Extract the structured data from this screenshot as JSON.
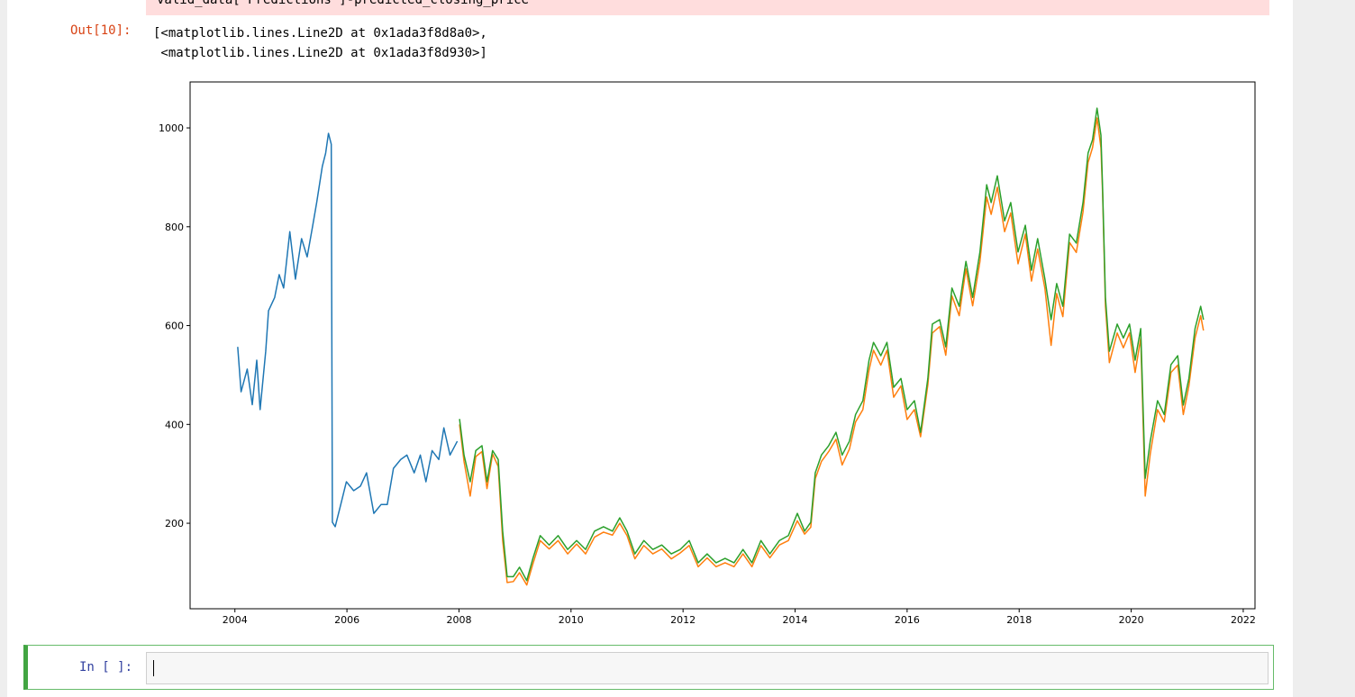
{
  "previous_cell": {
    "code": "valid_data['Predictions']-predicted_closing_price"
  },
  "output": {
    "prompt": "Out[10]:",
    "lines": [
      "[<matplotlib.lines.Line2D at 0x1ada3f8d8a0>,",
      " <matplotlib.lines.Line2D at 0x1ada3f8d930>]"
    ]
  },
  "chart_data": {
    "type": "line",
    "xlim": [
      2003.2,
      2022.21
    ],
    "xticks": [
      2004,
      2006,
      2008,
      2010,
      2012,
      2014,
      2016,
      2018,
      2020,
      2022
    ],
    "ylim": [
      27,
      1093
    ],
    "yticks": [
      200,
      400,
      600,
      800,
      1000
    ],
    "grid": false,
    "series": [
      {
        "color": "#1f77b4",
        "x": [
          2004.05,
          2004.11,
          2004.22,
          2004.31,
          2004.39,
          2004.45,
          2004.55,
          2004.6,
          2004.71,
          2004.79,
          2004.87,
          2004.98,
          2005.08,
          2005.19,
          2005.29,
          2005.39,
          2005.46,
          2005.56,
          2005.62,
          2005.67,
          2005.72,
          2005.74,
          2005.79,
          2005.87,
          2005.99,
          2006.12,
          2006.24,
          2006.35,
          2006.48,
          2006.61,
          2006.72,
          2006.83,
          2006.96,
          2007.07,
          2007.2,
          2007.31,
          2007.41,
          2007.52,
          2007.64,
          2007.73,
          2007.84,
          2007.97
        ],
        "values": [
          557,
          466,
          512,
          440,
          530,
          430,
          548,
          630,
          657,
          703,
          676,
          790,
          694,
          776,
          739,
          803,
          849,
          922,
          949,
          989,
          967,
          202,
          193,
          229,
          284,
          266,
          275,
          302,
          220,
          238,
          238,
          311,
          329,
          338,
          302,
          338,
          284,
          347,
          329,
          393,
          338,
          366
        ]
      },
      {
        "color": "#ff7f0e",
        "x": [
          2008.01,
          2008.09,
          2008.2,
          2008.3,
          2008.41,
          2008.5,
          2008.6,
          2008.7,
          2008.78,
          2008.86,
          2008.97,
          2009.08,
          2009.21,
          2009.32,
          2009.45,
          2009.61,
          2009.77,
          2009.94,
          2010.1,
          2010.26,
          2010.42,
          2010.58,
          2010.74,
          2010.87,
          2011.0,
          2011.14,
          2011.3,
          2011.46,
          2011.62,
          2011.79,
          2011.95,
          2012.11,
          2012.27,
          2012.43,
          2012.59,
          2012.75,
          2012.91,
          2013.07,
          2013.23,
          2013.39,
          2013.55,
          2013.72,
          2013.88,
          2014.04,
          2014.17,
          2014.28,
          2014.36,
          2014.47,
          2014.6,
          2014.73,
          2014.84,
          2014.97,
          2015.08,
          2015.21,
          2015.32,
          2015.4,
          2015.53,
          2015.64,
          2015.76,
          2015.89,
          2016.0,
          2016.13,
          2016.24,
          2016.37,
          2016.45,
          2016.58,
          2016.69,
          2016.8,
          2016.93,
          2017.05,
          2017.17,
          2017.3,
          2017.42,
          2017.5,
          2017.61,
          2017.74,
          2017.85,
          2017.98,
          2018.11,
          2018.22,
          2018.33,
          2018.46,
          2018.57,
          2018.67,
          2018.78,
          2018.9,
          2019.02,
          2019.14,
          2019.23,
          2019.31,
          2019.39,
          2019.46,
          2019.49,
          2019.54,
          2019.61,
          2019.75,
          2019.86,
          2019.97,
          2020.07,
          2020.17,
          2020.25,
          2020.34,
          2020.47,
          2020.59,
          2020.71,
          2020.83,
          2020.93,
          2021.03,
          2021.14,
          2021.24,
          2021.29
        ],
        "values": [
          400,
          325,
          255,
          335,
          345,
          270,
          340,
          315,
          165,
          80,
          82,
          100,
          75,
          118,
          165,
          148,
          165,
          138,
          158,
          138,
          172,
          182,
          176,
          200,
          175,
          128,
          155,
          138,
          148,
          128,
          140,
          155,
          112,
          130,
          112,
          120,
          112,
          138,
          112,
          155,
          130,
          156,
          165,
          205,
          178,
          192,
          290,
          325,
          345,
          370,
          318,
          350,
          405,
          430,
          510,
          550,
          520,
          550,
          455,
          478,
          410,
          430,
          375,
          480,
          585,
          598,
          540,
          660,
          620,
          715,
          640,
          730,
          860,
          825,
          880,
          790,
          828,
          725,
          785,
          690,
          755,
          675,
          560,
          665,
          618,
          768,
          748,
          830,
          930,
          960,
          1020,
          960,
          865,
          640,
          525,
          585,
          555,
          585,
          505,
          575,
          255,
          340,
          430,
          405,
          505,
          520,
          420,
          478,
          575,
          620,
          590
        ]
      },
      {
        "color": "#2ca02c",
        "x": [
          2008.01,
          2008.09,
          2008.2,
          2008.3,
          2008.41,
          2008.5,
          2008.6,
          2008.7,
          2008.78,
          2008.86,
          2008.97,
          2009.08,
          2009.21,
          2009.32,
          2009.45,
          2009.61,
          2009.77,
          2009.94,
          2010.1,
          2010.26,
          2010.42,
          2010.58,
          2010.74,
          2010.87,
          2011.0,
          2011.14,
          2011.3,
          2011.46,
          2011.62,
          2011.79,
          2011.95,
          2012.11,
          2012.27,
          2012.43,
          2012.59,
          2012.75,
          2012.91,
          2013.07,
          2013.23,
          2013.39,
          2013.55,
          2013.72,
          2013.88,
          2014.04,
          2014.17,
          2014.28,
          2014.36,
          2014.47,
          2014.6,
          2014.73,
          2014.84,
          2014.97,
          2015.08,
          2015.21,
          2015.32,
          2015.4,
          2015.53,
          2015.64,
          2015.76,
          2015.89,
          2016.0,
          2016.13,
          2016.24,
          2016.37,
          2016.45,
          2016.58,
          2016.69,
          2016.8,
          2016.93,
          2017.05,
          2017.17,
          2017.3,
          2017.42,
          2017.5,
          2017.61,
          2017.74,
          2017.85,
          2017.98,
          2018.11,
          2018.22,
          2018.33,
          2018.46,
          2018.57,
          2018.67,
          2018.78,
          2018.9,
          2019.02,
          2019.14,
          2019.23,
          2019.31,
          2019.39,
          2019.46,
          2019.49,
          2019.54,
          2019.61,
          2019.75,
          2019.86,
          2019.97,
          2020.07,
          2020.17,
          2020.25,
          2020.34,
          2020.47,
          2020.59,
          2020.71,
          2020.83,
          2020.93,
          2021.03,
          2021.14,
          2021.24,
          2021.29
        ],
        "values": [
          411,
          338,
          284,
          347,
          357,
          284,
          347,
          329,
          184,
          92,
          92,
          111,
          84,
          129,
          175,
          156,
          175,
          147,
          165,
          147,
          184,
          193,
          184,
          211,
          184,
          138,
          165,
          147,
          156,
          138,
          147,
          165,
          120,
          138,
          120,
          129,
          120,
          147,
          120,
          165,
          138,
          165,
          175,
          220,
          184,
          202,
          302,
          338,
          357,
          384,
          338,
          366,
          420,
          448,
          530,
          566,
          539,
          566,
          475,
          493,
          430,
          448,
          384,
          493,
          603,
          612,
          557,
          676,
          639,
          730,
          657,
          749,
          885,
          849,
          903,
          812,
          849,
          749,
          803,
          712,
          776,
          694,
          612,
          685,
          639,
          785,
          767,
          849,
          949,
          976,
          1040,
          985,
          876,
          657,
          548,
          603,
          575,
          603,
          530,
          594,
          291,
          366,
          448,
          420,
          521,
          539,
          439,
          493,
          594,
          639,
          612
        ]
      }
    ]
  },
  "input_cell": {
    "prompt": "In [ ]:"
  }
}
